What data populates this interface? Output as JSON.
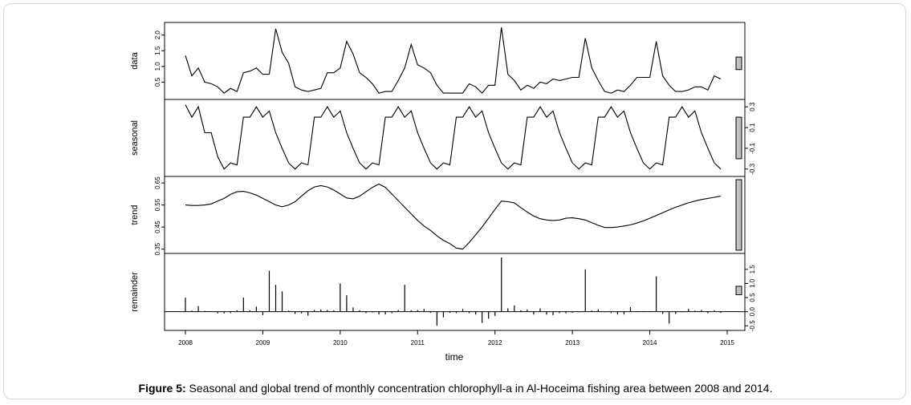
{
  "caption": {
    "label": "Figure 5:",
    "text": " Seasonal and global trend of monthly concentration chlorophyll-a in Al-Hoceima fishing area between 2008 and 2014."
  },
  "chart_data": {
    "type": "line",
    "xlabel": "time",
    "xlim": [
      2008,
      2015
    ],
    "xticks": [
      "2008",
      "2009",
      "2010",
      "2011",
      "2012",
      "2013",
      "2014",
      "2015"
    ],
    "line_color": "#000000",
    "bar_color": "#c0c0c0",
    "x_start": 2008,
    "x_step_months": 1,
    "panels": [
      {
        "name": "data",
        "ylabel": "data",
        "style": "line",
        "ylim": [
          0.05,
          2.3
        ],
        "yticks": [
          "0.5",
          "1.0",
          "1.5",
          "2.0"
        ],
        "ytick_values": [
          0.5,
          1.0,
          1.5,
          2.0
        ],
        "tick_side": "left",
        "scale_bar": [
          0.9,
          1.3
        ],
        "values": [
          1.35,
          0.7,
          0.95,
          0.5,
          0.45,
          0.35,
          0.15,
          0.3,
          0.2,
          0.8,
          0.85,
          0.95,
          0.75,
          0.75,
          2.2,
          1.45,
          1.1,
          0.35,
          0.25,
          0.2,
          0.25,
          0.3,
          0.8,
          0.8,
          0.95,
          1.8,
          1.4,
          0.8,
          0.65,
          0.45,
          0.15,
          0.2,
          0.2,
          0.55,
          0.95,
          1.7,
          1.05,
          0.95,
          0.8,
          0.4,
          0.15,
          0.15,
          0.15,
          0.15,
          0.45,
          0.35,
          0.15,
          0.4,
          0.4,
          2.25,
          0.75,
          0.55,
          0.25,
          0.4,
          0.3,
          0.5,
          0.45,
          0.6,
          0.55,
          0.6,
          0.65,
          0.65,
          1.9,
          0.95,
          0.55,
          0.2,
          0.15,
          0.25,
          0.2,
          0.4,
          0.65,
          0.65,
          0.65,
          1.8,
          0.7,
          0.4,
          0.2,
          0.2,
          0.25,
          0.35,
          0.35,
          0.25,
          0.7,
          0.6
        ]
      },
      {
        "name": "seasonal",
        "ylabel": "seasonal",
        "style": "line",
        "ylim": [
          -0.34,
          0.34
        ],
        "yticks": [
          "-0.3",
          "-0.1",
          "0.1",
          "0.3"
        ],
        "ytick_values": [
          -0.3,
          -0.1,
          0.1,
          0.3
        ],
        "tick_side": "right",
        "scale_bar": [
          -0.2,
          0.2
        ],
        "values": [
          0.32,
          0.2,
          0.3,
          0.05,
          0.05,
          -0.18,
          -0.3,
          -0.24,
          -0.26,
          0.2,
          0.2,
          0.3,
          0.2,
          0.26,
          0.05,
          -0.1,
          -0.24,
          -0.3,
          -0.24,
          -0.26,
          0.2,
          0.2,
          0.3,
          0.2,
          0.26,
          0.05,
          -0.1,
          -0.24,
          -0.3,
          -0.24,
          -0.26,
          0.2,
          0.2,
          0.3,
          0.2,
          0.26,
          0.05,
          -0.1,
          -0.24,
          -0.3,
          -0.24,
          -0.26,
          0.2,
          0.2,
          0.3,
          0.2,
          0.26,
          0.05,
          -0.1,
          -0.24,
          -0.3,
          -0.24,
          -0.26,
          0.2,
          0.2,
          0.3,
          0.2,
          0.26,
          0.05,
          -0.1,
          -0.24,
          -0.3,
          -0.24,
          -0.26,
          0.2,
          0.2,
          0.3,
          0.2,
          0.26,
          0.05,
          -0.1,
          -0.24,
          -0.3,
          -0.24,
          -0.26,
          0.2,
          0.2,
          0.3,
          0.2,
          0.26,
          0.05,
          -0.1,
          -0.24,
          -0.3
        ]
      },
      {
        "name": "trend",
        "ylabel": "trend",
        "style": "line",
        "ylim": [
          0.345,
          0.665
        ],
        "yticks": [
          "0.35",
          "0.45",
          "0.55",
          "0.65"
        ],
        "ytick_values": [
          0.35,
          0.45,
          0.55,
          0.65
        ],
        "tick_side": "left",
        "scale_bar": [
          0.345,
          0.665
        ],
        "values": [
          0.55,
          0.548,
          0.548,
          0.55,
          0.555,
          0.568,
          0.58,
          0.598,
          0.61,
          0.612,
          0.605,
          0.595,
          0.58,
          0.565,
          0.55,
          0.542,
          0.55,
          0.565,
          0.59,
          0.615,
          0.632,
          0.638,
          0.632,
          0.618,
          0.6,
          0.582,
          0.578,
          0.59,
          0.61,
          0.63,
          0.645,
          0.63,
          0.6,
          0.57,
          0.54,
          0.51,
          0.48,
          0.455,
          0.435,
          0.41,
          0.39,
          0.375,
          0.355,
          0.35,
          0.38,
          0.415,
          0.45,
          0.49,
          0.53,
          0.568,
          0.565,
          0.56,
          0.538,
          0.518,
          0.5,
          0.488,
          0.482,
          0.48,
          0.482,
          0.49,
          0.492,
          0.488,
          0.482,
          0.47,
          0.458,
          0.448,
          0.448,
          0.45,
          0.455,
          0.46,
          0.468,
          0.478,
          0.49,
          0.502,
          0.515,
          0.528,
          0.54,
          0.55,
          0.56,
          0.568,
          0.575,
          0.58,
          0.585,
          0.59
        ]
      },
      {
        "name": "remainder",
        "ylabel": "remainder",
        "style": "spikes",
        "ylim": [
          -0.55,
          1.95
        ],
        "yticks": [
          "-0.5",
          "0.0",
          "0.5",
          "1.0",
          "1.5"
        ],
        "ytick_values": [
          -0.5,
          0.0,
          0.5,
          1.0,
          1.5
        ],
        "tick_side": "right",
        "scale_bar": [
          0.6,
          0.9
        ],
        "values": [
          0.5,
          0.04,
          0.2,
          0.03,
          0.01,
          -0.06,
          -0.06,
          -0.05,
          0.05,
          0.5,
          0.05,
          0.18,
          -0.12,
          1.45,
          0.95,
          0.72,
          0.04,
          -0.08,
          -0.06,
          -0.14,
          0.06,
          0.08,
          0.06,
          0.05,
          1.0,
          0.58,
          0.15,
          0.05,
          -0.05,
          -0.03,
          -0.1,
          -0.1,
          -0.05,
          0.06,
          0.95,
          0.05,
          0.06,
          0.1,
          -0.04,
          -0.5,
          -0.2,
          -0.04,
          -0.05,
          0.1,
          -0.05,
          -0.1,
          -0.4,
          -0.25,
          -0.15,
          1.92,
          0.12,
          0.22,
          0.05,
          0.08,
          -0.1,
          0.12,
          -0.1,
          -0.12,
          -0.05,
          -0.06,
          -0.04,
          -0.02,
          1.5,
          0.04,
          0.08,
          -0.02,
          -0.05,
          -0.1,
          -0.1,
          0.16,
          0.02,
          0.02,
          0.02,
          1.25,
          -0.08,
          -0.42,
          -0.08,
          -0.02,
          0.1,
          0.04,
          0.06,
          -0.05,
          0.05,
          -0.04
        ]
      }
    ]
  }
}
